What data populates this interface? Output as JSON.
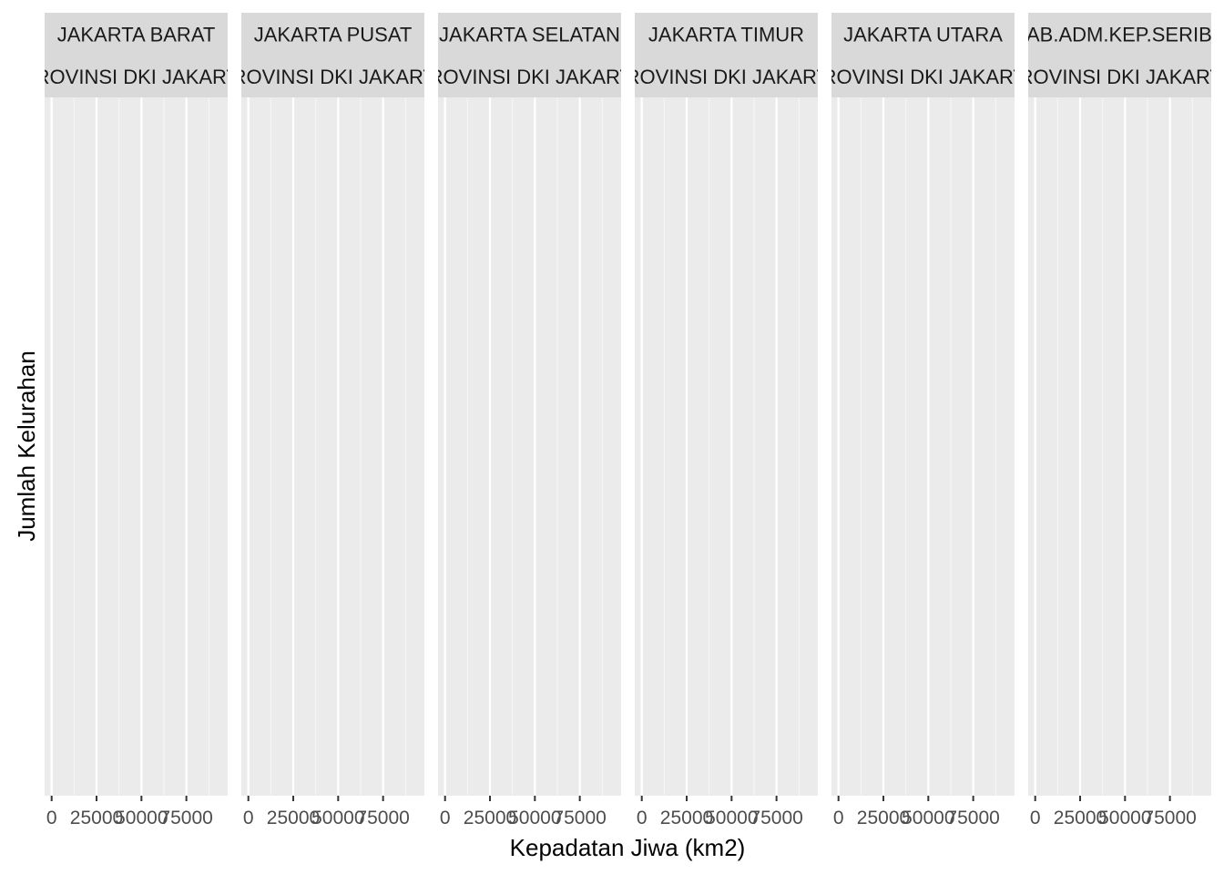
{
  "chart_data": {
    "type": "histogram",
    "facet_rows": [
      "PROVINSI DKI JAKARTA"
    ],
    "facets": [
      {
        "col": "JAKARTA BARAT",
        "row": "PROVINSI DKI JAKARTA"
      },
      {
        "col": "JAKARTA PUSAT",
        "row": "PROVINSI DKI JAKARTA"
      },
      {
        "col": "JAKARTA SELATAN",
        "row": "PROVINSI DKI JAKARTA"
      },
      {
        "col": "JAKARTA TIMUR",
        "row": "PROVINSI DKI JAKARTA"
      },
      {
        "col": "JAKARTA UTARA",
        "row": "PROVINSI DKI JAKARTA"
      },
      {
        "col": "KAB.ADM.KEP.SERIBU",
        "row": "PROVINSI DKI JAKARTA"
      }
    ],
    "xlabel": "Kepadatan Jiwa (km2)",
    "ylabel": "Jumlah Kelurahan",
    "xlim": [
      -3900,
      98000
    ],
    "x_ticks": [
      0,
      25000,
      50000,
      75000
    ],
    "x_tick_labels": [
      "0",
      "25000",
      "50000",
      "75000"
    ],
    "x_minor_ticks": [
      12500,
      37500,
      62500,
      87500
    ],
    "y_ticks": [],
    "series": [],
    "grid": true,
    "legend": "none",
    "colors": {
      "panel_background": "#EBEBEB",
      "strip_background": "#D9D9D9",
      "grid_major": "#FFFFFF",
      "grid_minor": "#F5F5F5",
      "strip_text": "#1A1A1A",
      "tick_text": "#4D4D4D",
      "axis_title": "#000000",
      "tick_mark": "#333333"
    }
  }
}
